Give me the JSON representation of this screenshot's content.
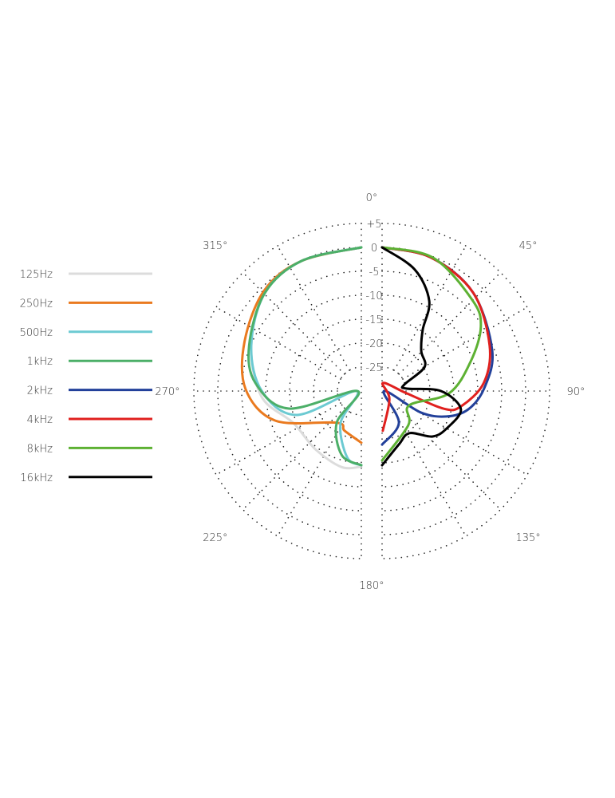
{
  "chart_data": {
    "type": "polar-line",
    "title": "",
    "radial_axis": {
      "unit": "dB",
      "range": [
        -30,
        5
      ],
      "ticks": [
        5,
        0,
        -5,
        -10,
        -15,
        -20,
        -25
      ],
      "tick_labels": [
        "+5",
        "0",
        "-5",
        "-10",
        "-15",
        "-20",
        "-25"
      ]
    },
    "angular_axis": {
      "direction": "clockwise",
      "zero": "top",
      "tick_labels": [
        "0°",
        "45°",
        "90°",
        "135°",
        "180°",
        "225°",
        "270°",
        "315°"
      ],
      "tick_angles": [
        0,
        45,
        90,
        135,
        180,
        225,
        270,
        315
      ]
    },
    "grid": true,
    "legend_placement": "left",
    "series": [
      {
        "name": "125Hz",
        "color": "#dcdcdc",
        "half": "left",
        "points": [
          [
            180,
            -14.2
          ],
          [
            194.7,
            -13.6
          ],
          [
            218.5,
            -14.5
          ],
          [
            244.8,
            -14.3
          ],
          [
            266.8,
            -9.1
          ],
          [
            292.5,
            -5.1
          ],
          [
            315.5,
            -1.25
          ],
          [
            335.3,
            -0.1
          ],
          [
            360,
            0
          ]
        ]
      },
      {
        "name": "250Hz",
        "color": "#ea7a1f",
        "half": "left",
        "points": [
          [
            180,
            -19.2
          ],
          [
            203,
            -21
          ],
          [
            218,
            -21.6
          ],
          [
            251,
            -11
          ],
          [
            271,
            -5.8
          ],
          [
            293,
            -3.5
          ],
          [
            316,
            -0.8
          ],
          [
            335.3,
            -0.1
          ],
          [
            360,
            0
          ]
        ]
      },
      {
        "name": "500Hz",
        "color": "#6ccad2",
        "half": "left",
        "points": [
          [
            180,
            -14.5
          ],
          [
            192,
            -15.8
          ],
          [
            213,
            -22
          ],
          [
            270,
            -29
          ],
          [
            249.7,
            -15.6
          ],
          [
            270,
            -9.2
          ],
          [
            292.5,
            -5.1
          ],
          [
            315.5,
            -1.25
          ],
          [
            335.3,
            -0.1
          ],
          [
            360,
            0
          ]
        ]
      },
      {
        "name": "1kHz",
        "color": "#4caf68",
        "half": "left",
        "points": [
          [
            180,
            -14.5
          ],
          [
            197,
            -16
          ],
          [
            217.8,
            -21.6
          ],
          [
            270,
            -29.2
          ],
          [
            256.4,
            -14.4
          ],
          [
            274.3,
            -7.8
          ],
          [
            292,
            -4.7
          ],
          [
            315.5,
            -1.25
          ],
          [
            335.3,
            -0.1
          ],
          [
            360,
            0
          ]
        ]
      },
      {
        "name": "2kHz",
        "color": "#22409a",
        "half": "right",
        "points": [
          [
            0,
            0
          ],
          [
            20,
            -0.3
          ],
          [
            42.8,
            -2
          ],
          [
            70,
            -5.5
          ],
          [
            88.7,
            -8.7
          ],
          [
            102,
            -11.6
          ],
          [
            111.5,
            -15.5
          ],
          [
            119,
            -20.8
          ],
          [
            90,
            -29.6
          ],
          [
            152,
            -22.5
          ],
          [
            180,
            -18.8
          ]
        ]
      },
      {
        "name": "4kHz",
        "color": "#e0201e",
        "half": "right",
        "points": [
          [
            0,
            0
          ],
          [
            20,
            -0.3
          ],
          [
            42.8,
            -2
          ],
          [
            67,
            -5.6
          ],
          [
            85.5,
            -8.7
          ],
          [
            101,
            -13.2
          ],
          [
            106,
            -16.5
          ],
          [
            95.5,
            -24.8
          ],
          [
            6,
            -28.3
          ],
          [
            138,
            -27.7
          ],
          [
            179,
            -21.7
          ]
        ]
      },
      {
        "name": "8kHz",
        "color": "#5db133",
        "half": "right",
        "points": [
          [
            0,
            0
          ],
          [
            21,
            -0.2
          ],
          [
            45,
            -3.25
          ],
          [
            57,
            -5.4
          ],
          [
            71.6,
            -10.5
          ],
          [
            92,
            -16
          ],
          [
            118,
            -23.6
          ],
          [
            142.5,
            -21
          ],
          [
            180,
            -15.5
          ]
        ]
      },
      {
        "name": "16kHz",
        "color": "#000000",
        "half": "right",
        "points": [
          [
            0,
            0
          ],
          [
            15,
            -3.7
          ],
          [
            27.6,
            -8.75
          ],
          [
            33.5,
            -14.6
          ],
          [
            44.4,
            -18.3
          ],
          [
            60.5,
            -19.8
          ],
          [
            74,
            -25.2
          ],
          [
            84.5,
            -24.8
          ],
          [
            90,
            -17.7
          ],
          [
            103,
            -13.1
          ],
          [
            120,
            -14.4
          ],
          [
            132,
            -15.8
          ],
          [
            147,
            -19.5
          ],
          [
            162.6,
            -18.3
          ],
          [
            180,
            -14.5
          ]
        ]
      }
    ]
  }
}
